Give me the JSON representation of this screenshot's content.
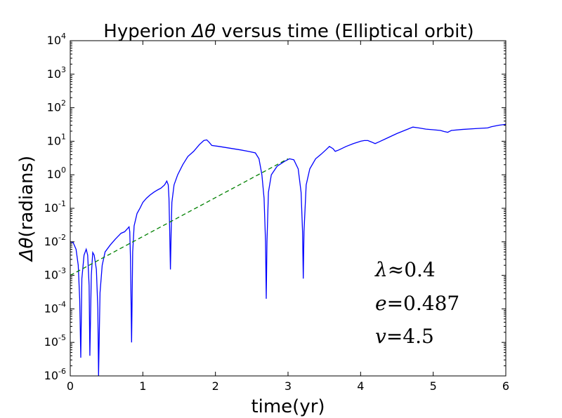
{
  "chart_data": {
    "type": "line",
    "title_text": "Hyperion ",
    "title_symbol": "Δθ",
    "title_rest": " versus time (Elliptical orbit)",
    "xlabel": "time(yr)",
    "ylabel_symbol": "Δθ",
    "ylabel_rest": "(radians)",
    "xlim": [
      0,
      6
    ],
    "ylim_log10": [
      -6,
      4
    ],
    "yscale": "log",
    "x_ticks": [
      0,
      1,
      2,
      3,
      4,
      5,
      6
    ],
    "x_tick_labels": [
      "0",
      "1",
      "2",
      "3",
      "4",
      "5",
      "6"
    ],
    "y_ticks": [
      {
        "exp": -6,
        "base": "10",
        "sup": "-6"
      },
      {
        "exp": -5,
        "base": "10",
        "sup": "-5"
      },
      {
        "exp": -4,
        "base": "10",
        "sup": "-4"
      },
      {
        "exp": -3,
        "base": "10",
        "sup": "-3"
      },
      {
        "exp": -2,
        "base": "10",
        "sup": "-2"
      },
      {
        "exp": -1,
        "base": "10",
        "sup": "-1"
      },
      {
        "exp": 0,
        "base": "10",
        "sup": "0"
      },
      {
        "exp": 1,
        "base": "10",
        "sup": "1"
      },
      {
        "exp": 2,
        "base": "10",
        "sup": "2"
      },
      {
        "exp": 3,
        "base": "10",
        "sup": "3"
      },
      {
        "exp": 4,
        "base": "10",
        "sup": "4"
      }
    ],
    "grid": false,
    "series": [
      {
        "style": "solid",
        "color": "#0000ff",
        "points": [
          [
            0.0,
            0.01
          ],
          [
            0.04,
            0.0095
          ],
          [
            0.08,
            0.006
          ],
          [
            0.11,
            0.002
          ],
          [
            0.13,
            0.0002
          ],
          [
            0.145,
            3.5e-06
          ],
          [
            0.16,
            0.0008
          ],
          [
            0.19,
            0.004
          ],
          [
            0.22,
            0.006
          ],
          [
            0.24,
            0.004
          ],
          [
            0.26,
            0.0005
          ],
          [
            0.27,
            4e-06
          ],
          [
            0.29,
            0.001
          ],
          [
            0.31,
            0.0048
          ],
          [
            0.33,
            0.004
          ],
          [
            0.36,
            0.0015
          ],
          [
            0.38,
            0.0001
          ],
          [
            0.39,
            1e-06
          ],
          [
            0.41,
            0.0003
          ],
          [
            0.44,
            0.002
          ],
          [
            0.48,
            0.005
          ],
          [
            0.55,
            0.008
          ],
          [
            0.62,
            0.012
          ],
          [
            0.7,
            0.018
          ],
          [
            0.75,
            0.02
          ],
          [
            0.79,
            0.025
          ],
          [
            0.81,
            0.028
          ],
          [
            0.82,
            0.02
          ],
          [
            0.83,
            0.003
          ],
          [
            0.845,
            1e-05
          ],
          [
            0.86,
            0.005
          ],
          [
            0.88,
            0.03
          ],
          [
            0.92,
            0.07
          ],
          [
            0.96,
            0.1
          ],
          [
            1.0,
            0.15
          ],
          [
            1.05,
            0.2
          ],
          [
            1.1,
            0.25
          ],
          [
            1.15,
            0.3
          ],
          [
            1.2,
            0.35
          ],
          [
            1.25,
            0.4
          ],
          [
            1.3,
            0.5
          ],
          [
            1.33,
            0.65
          ],
          [
            1.35,
            0.5
          ],
          [
            1.36,
            0.2
          ],
          [
            1.37,
            0.02
          ],
          [
            1.38,
            0.0015
          ],
          [
            1.39,
            0.02
          ],
          [
            1.4,
            0.15
          ],
          [
            1.43,
            0.5
          ],
          [
            1.48,
            1.0
          ],
          [
            1.55,
            2.0
          ],
          [
            1.62,
            3.5
          ],
          [
            1.7,
            5.0
          ],
          [
            1.78,
            8.0
          ],
          [
            1.84,
            10.5
          ],
          [
            1.88,
            11.0
          ],
          [
            1.91,
            9.5
          ],
          [
            1.95,
            7.5
          ],
          [
            2.05,
            7.0
          ],
          [
            2.2,
            6.2
          ],
          [
            2.35,
            5.5
          ],
          [
            2.45,
            5.0
          ],
          [
            2.55,
            4.5
          ],
          [
            2.6,
            3.0
          ],
          [
            2.64,
            1.0
          ],
          [
            2.67,
            0.2
          ],
          [
            2.69,
            0.01
          ],
          [
            2.7,
            0.0002
          ],
          [
            2.71,
            0.01
          ],
          [
            2.73,
            0.3
          ],
          [
            2.77,
            1.0
          ],
          [
            2.85,
            1.8
          ],
          [
            2.95,
            2.5
          ],
          [
            3.02,
            3.0
          ],
          [
            3.08,
            2.8
          ],
          [
            3.14,
            1.5
          ],
          [
            3.18,
            0.3
          ],
          [
            3.2,
            0.02
          ],
          [
            3.21,
            0.0008
          ],
          [
            3.22,
            0.02
          ],
          [
            3.25,
            0.5
          ],
          [
            3.3,
            1.5
          ],
          [
            3.38,
            3.0
          ],
          [
            3.45,
            4.0
          ],
          [
            3.52,
            5.5
          ],
          [
            3.57,
            7.0
          ],
          [
            3.62,
            6.0
          ],
          [
            3.65,
            5.0
          ],
          [
            3.7,
            5.5
          ],
          [
            3.8,
            7.0
          ],
          [
            3.9,
            8.5
          ],
          [
            4.0,
            10.0
          ],
          [
            4.05,
            10.5
          ],
          [
            4.1,
            10.5
          ],
          [
            4.15,
            9.5
          ],
          [
            4.2,
            8.5
          ],
          [
            4.25,
            9.5
          ],
          [
            4.35,
            12.0
          ],
          [
            4.5,
            17.0
          ],
          [
            4.65,
            23.0
          ],
          [
            4.72,
            26.5
          ],
          [
            4.8,
            25.0
          ],
          [
            4.9,
            23.0
          ],
          [
            5.0,
            22.0
          ],
          [
            5.1,
            21.0
          ],
          [
            5.15,
            19.5
          ],
          [
            5.2,
            18.5
          ],
          [
            5.22,
            19.5
          ],
          [
            5.25,
            21.0
          ],
          [
            5.4,
            22.5
          ],
          [
            5.6,
            24.0
          ],
          [
            5.75,
            25.0
          ],
          [
            5.8,
            27.0
          ],
          [
            5.9,
            30.0
          ],
          [
            6.0,
            32.0
          ]
        ]
      },
      {
        "style": "dashed",
        "color": "#008000",
        "points": [
          [
            0.0,
            0.001
          ],
          [
            3.0,
            3.0
          ]
        ]
      }
    ],
    "annotations": [
      {
        "symbol": "λ",
        "text": "≈0.4"
      },
      {
        "symbol": "e",
        "text": "=0.487"
      },
      {
        "symbol": "v",
        "text": "=4.5"
      }
    ]
  }
}
